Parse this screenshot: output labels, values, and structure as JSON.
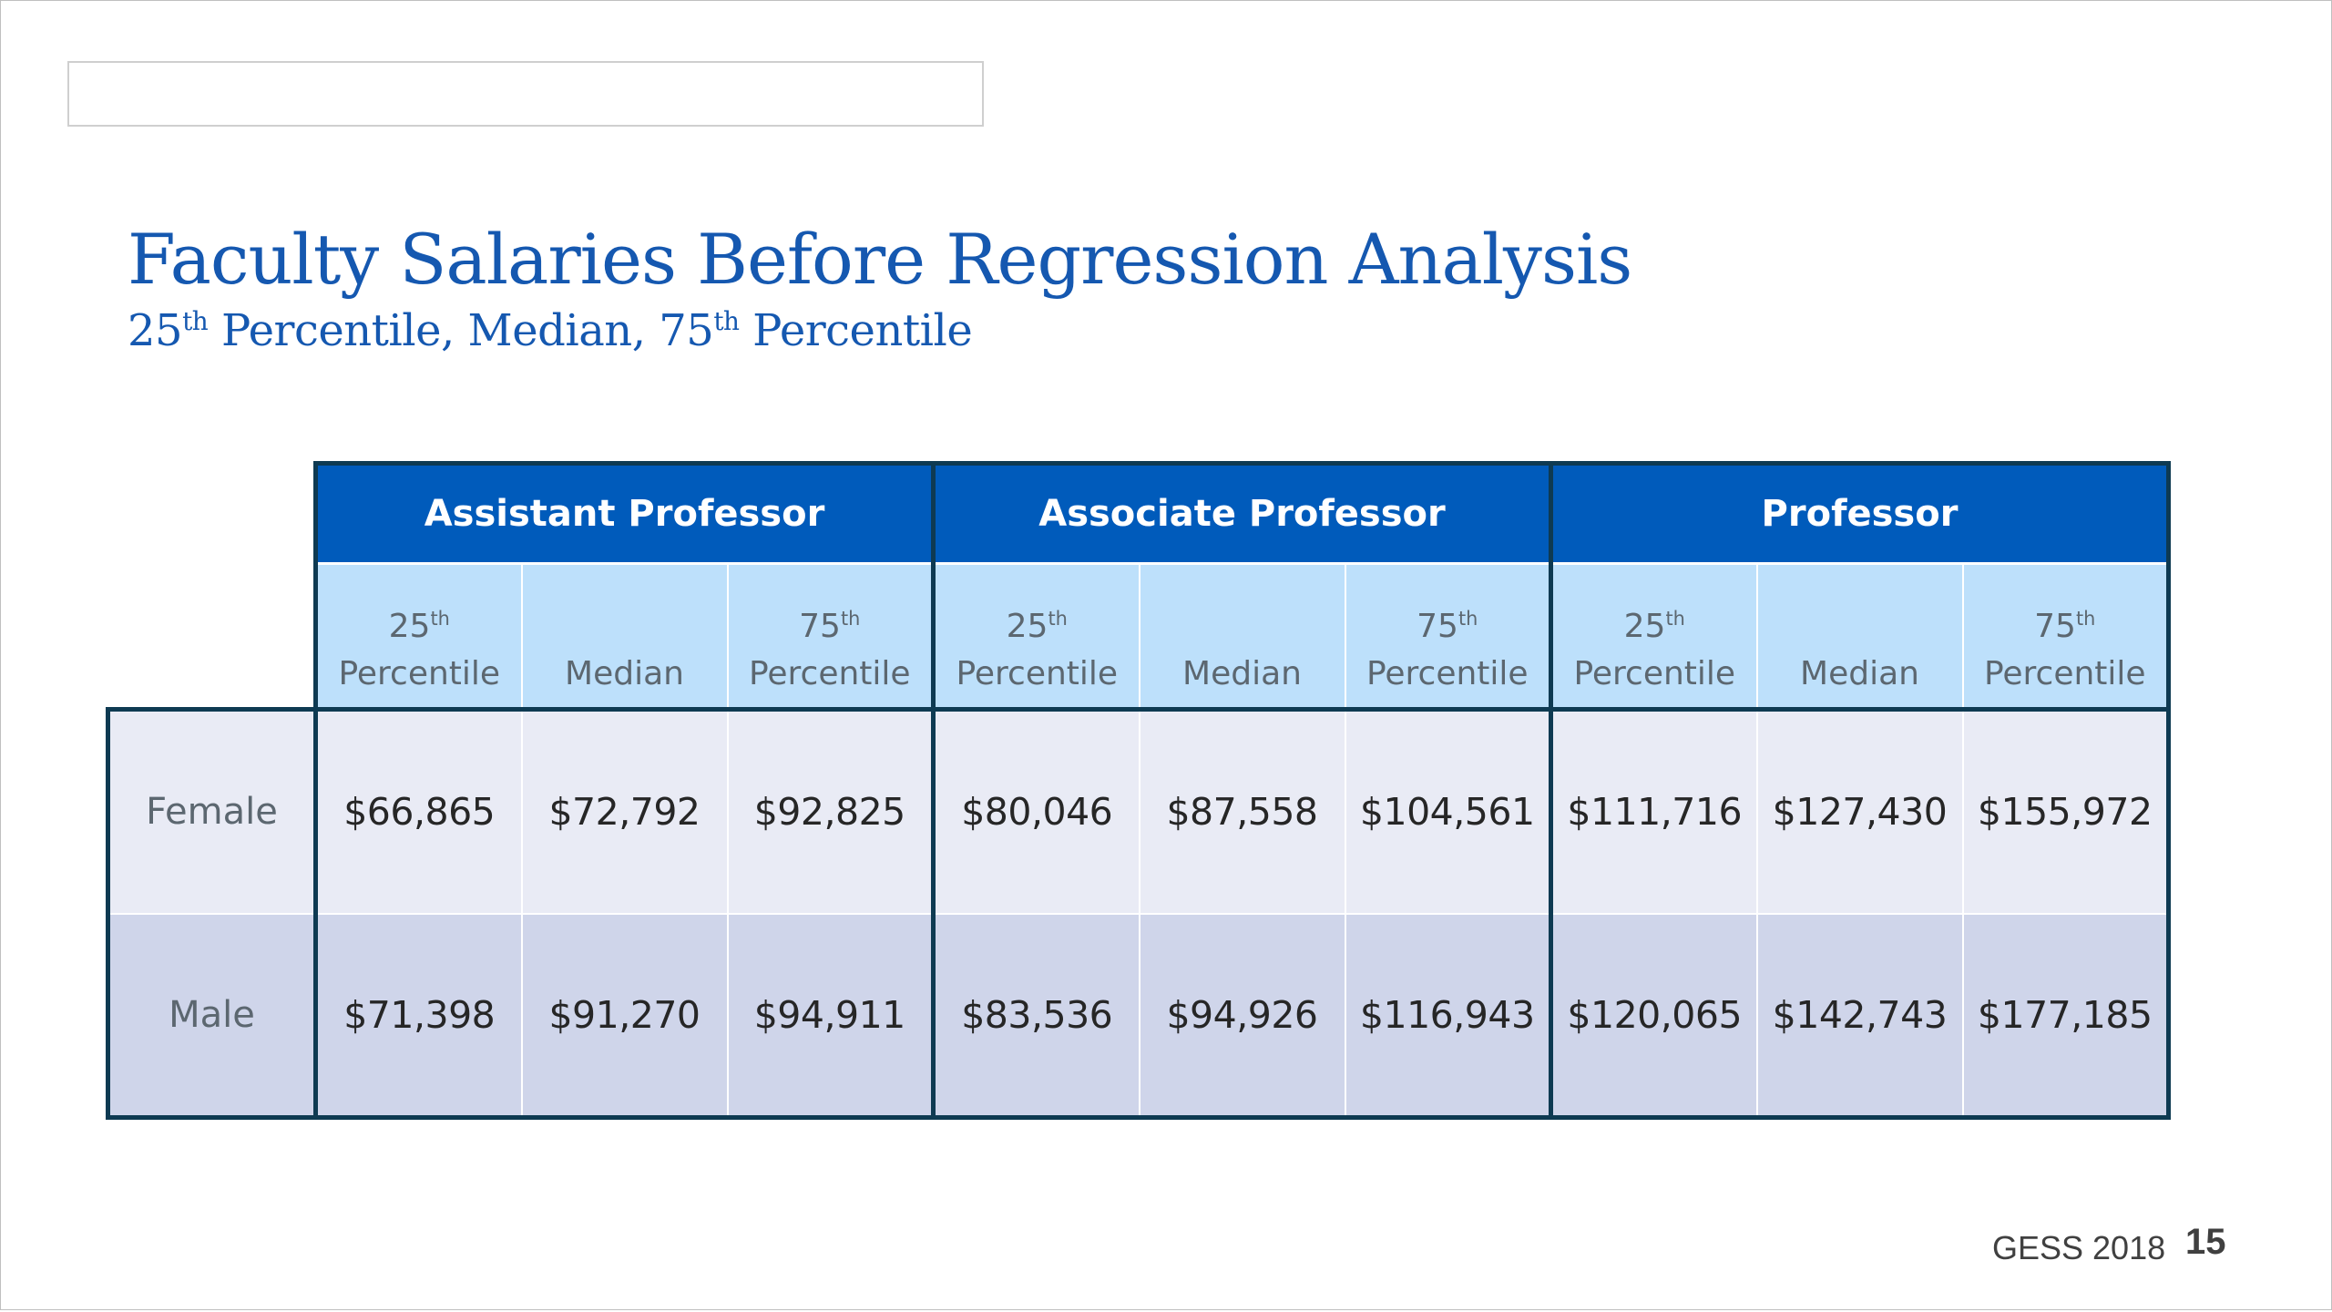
{
  "slide": {
    "title": "Faculty Salaries Before Regression Analysis",
    "subtitle": {
      "part1_num": "25",
      "part1_sup": "th",
      "part2": " Percentile, Median, ",
      "part3_num": "75",
      "part3_sup": "th",
      "part4": " Percentile"
    },
    "footer": "GESS 2018",
    "page_number": "15"
  },
  "table": {
    "groups": [
      {
        "label": "Assistant Professor"
      },
      {
        "label": "Associate Professor"
      },
      {
        "label": "Professor"
      }
    ],
    "sub_columns": {
      "p25_num": "25",
      "p25_sup": "th",
      "percentile": "Percentile",
      "median": "Median",
      "p75_num": "75",
      "p75_sup": "th"
    },
    "rows": [
      {
        "label": "Female",
        "values": [
          "$66,865",
          "$72,792",
          "$92,825",
          "$80,046",
          "$87,558",
          "$104,561",
          "$111,716",
          "$127,430",
          "$155,972"
        ]
      },
      {
        "label": "Male",
        "values": [
          "$71,398",
          "$91,270",
          "$94,911",
          "$83,536",
          "$94,926",
          "$116,943",
          "$120,065",
          "$142,743",
          "$177,185"
        ]
      }
    ]
  },
  "colors": {
    "title": "#1558b0",
    "group_header_bg": "#005bbb",
    "sub_header_bg": "#bde0fb",
    "female_row_bg": "#e9ebf5",
    "male_row_bg": "#cfd5ea",
    "border": "#0e3a52"
  }
}
